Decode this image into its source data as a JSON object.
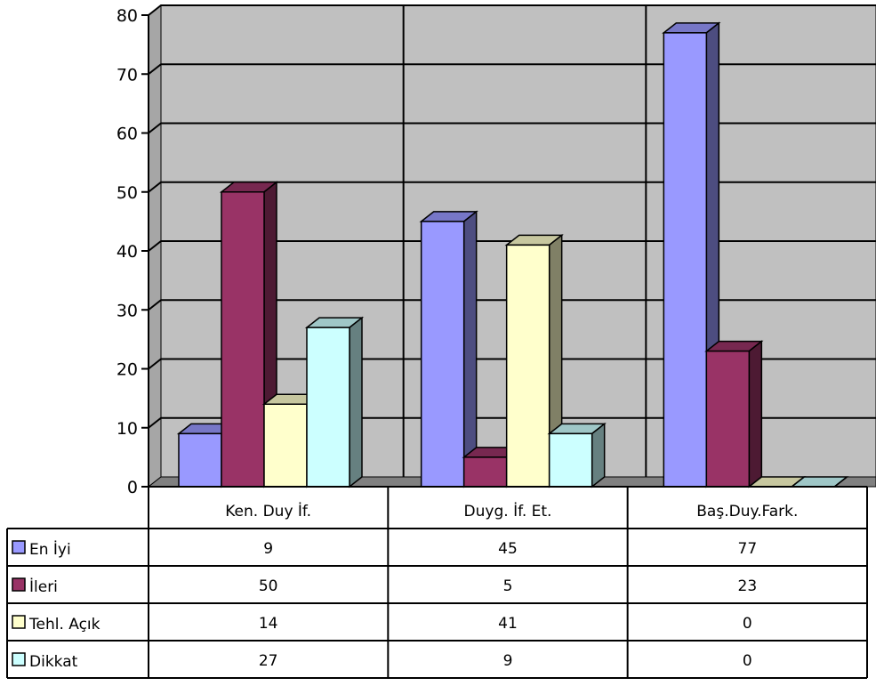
{
  "chart_data": {
    "type": "bar",
    "categories": [
      "Ken. Duy İf.",
      "Duyg. İf. Et.",
      "Baş.Duy.Fark."
    ],
    "series": [
      {
        "name": "En İyi",
        "values": [
          9,
          45,
          77
        ],
        "color": "#9999ff"
      },
      {
        "name": "İleri",
        "values": [
          50,
          5,
          23
        ],
        "color": "#993366"
      },
      {
        "name": "Tehl. Açık",
        "values": [
          14,
          41,
          0
        ],
        "color": "#ffffcc"
      },
      {
        "name": "Dikkat",
        "values": [
          27,
          9,
          0
        ],
        "color": "#ccffff"
      }
    ],
    "ylim": [
      0,
      80
    ],
    "yticks": [
      0,
      10,
      20,
      30,
      40,
      50,
      60,
      70,
      80
    ],
    "grid": true,
    "legend": "data-table",
    "wall_color": "#c0c0c0",
    "style": "3d-clustered-bar"
  }
}
